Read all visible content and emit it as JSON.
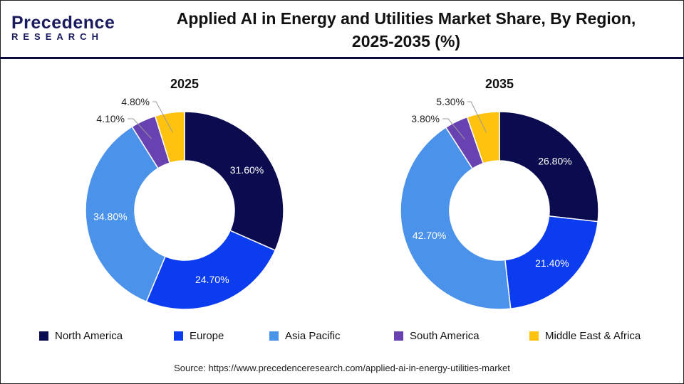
{
  "header": {
    "logo_main": "Precedence",
    "logo_sub": "RESEARCH",
    "title": "Applied AI in Energy and Utilities Market Share, By Region, 2025-2035 (%)"
  },
  "colors": {
    "North America": "#0b0b4f",
    "Europe": "#0b3cf0",
    "Asia Pacific": "#4b92ea",
    "South America": "#6842b0",
    "Middle East & Africa": "#fec20f"
  },
  "chart_data": [
    {
      "type": "pie",
      "subtype": "donut",
      "title": "2025",
      "categories": [
        "North America",
        "Europe",
        "Asia Pacific",
        "South America",
        "Middle East & Africa"
      ],
      "values": [
        31.6,
        24.7,
        34.8,
        4.1,
        4.8
      ],
      "labels": [
        "31.60%",
        "24.70%",
        "34.80%",
        "4.10%",
        "4.80%"
      ]
    },
    {
      "type": "pie",
      "subtype": "donut",
      "title": "2035",
      "categories": [
        "North America",
        "Europe",
        "Asia Pacific",
        "South America",
        "Middle East & Africa"
      ],
      "values": [
        26.8,
        21.4,
        42.7,
        3.8,
        5.3
      ],
      "labels": [
        "26.80%",
        "21.40%",
        "42.70%",
        "3.80%",
        "5.30%"
      ]
    }
  ],
  "legend": [
    "North America",
    "Europe",
    "Asia Pacific",
    "South America",
    "Middle East & Africa"
  ],
  "source": "Source: https://www.precedenceresearch.com/applied-ai-in-energy-utilities-market"
}
